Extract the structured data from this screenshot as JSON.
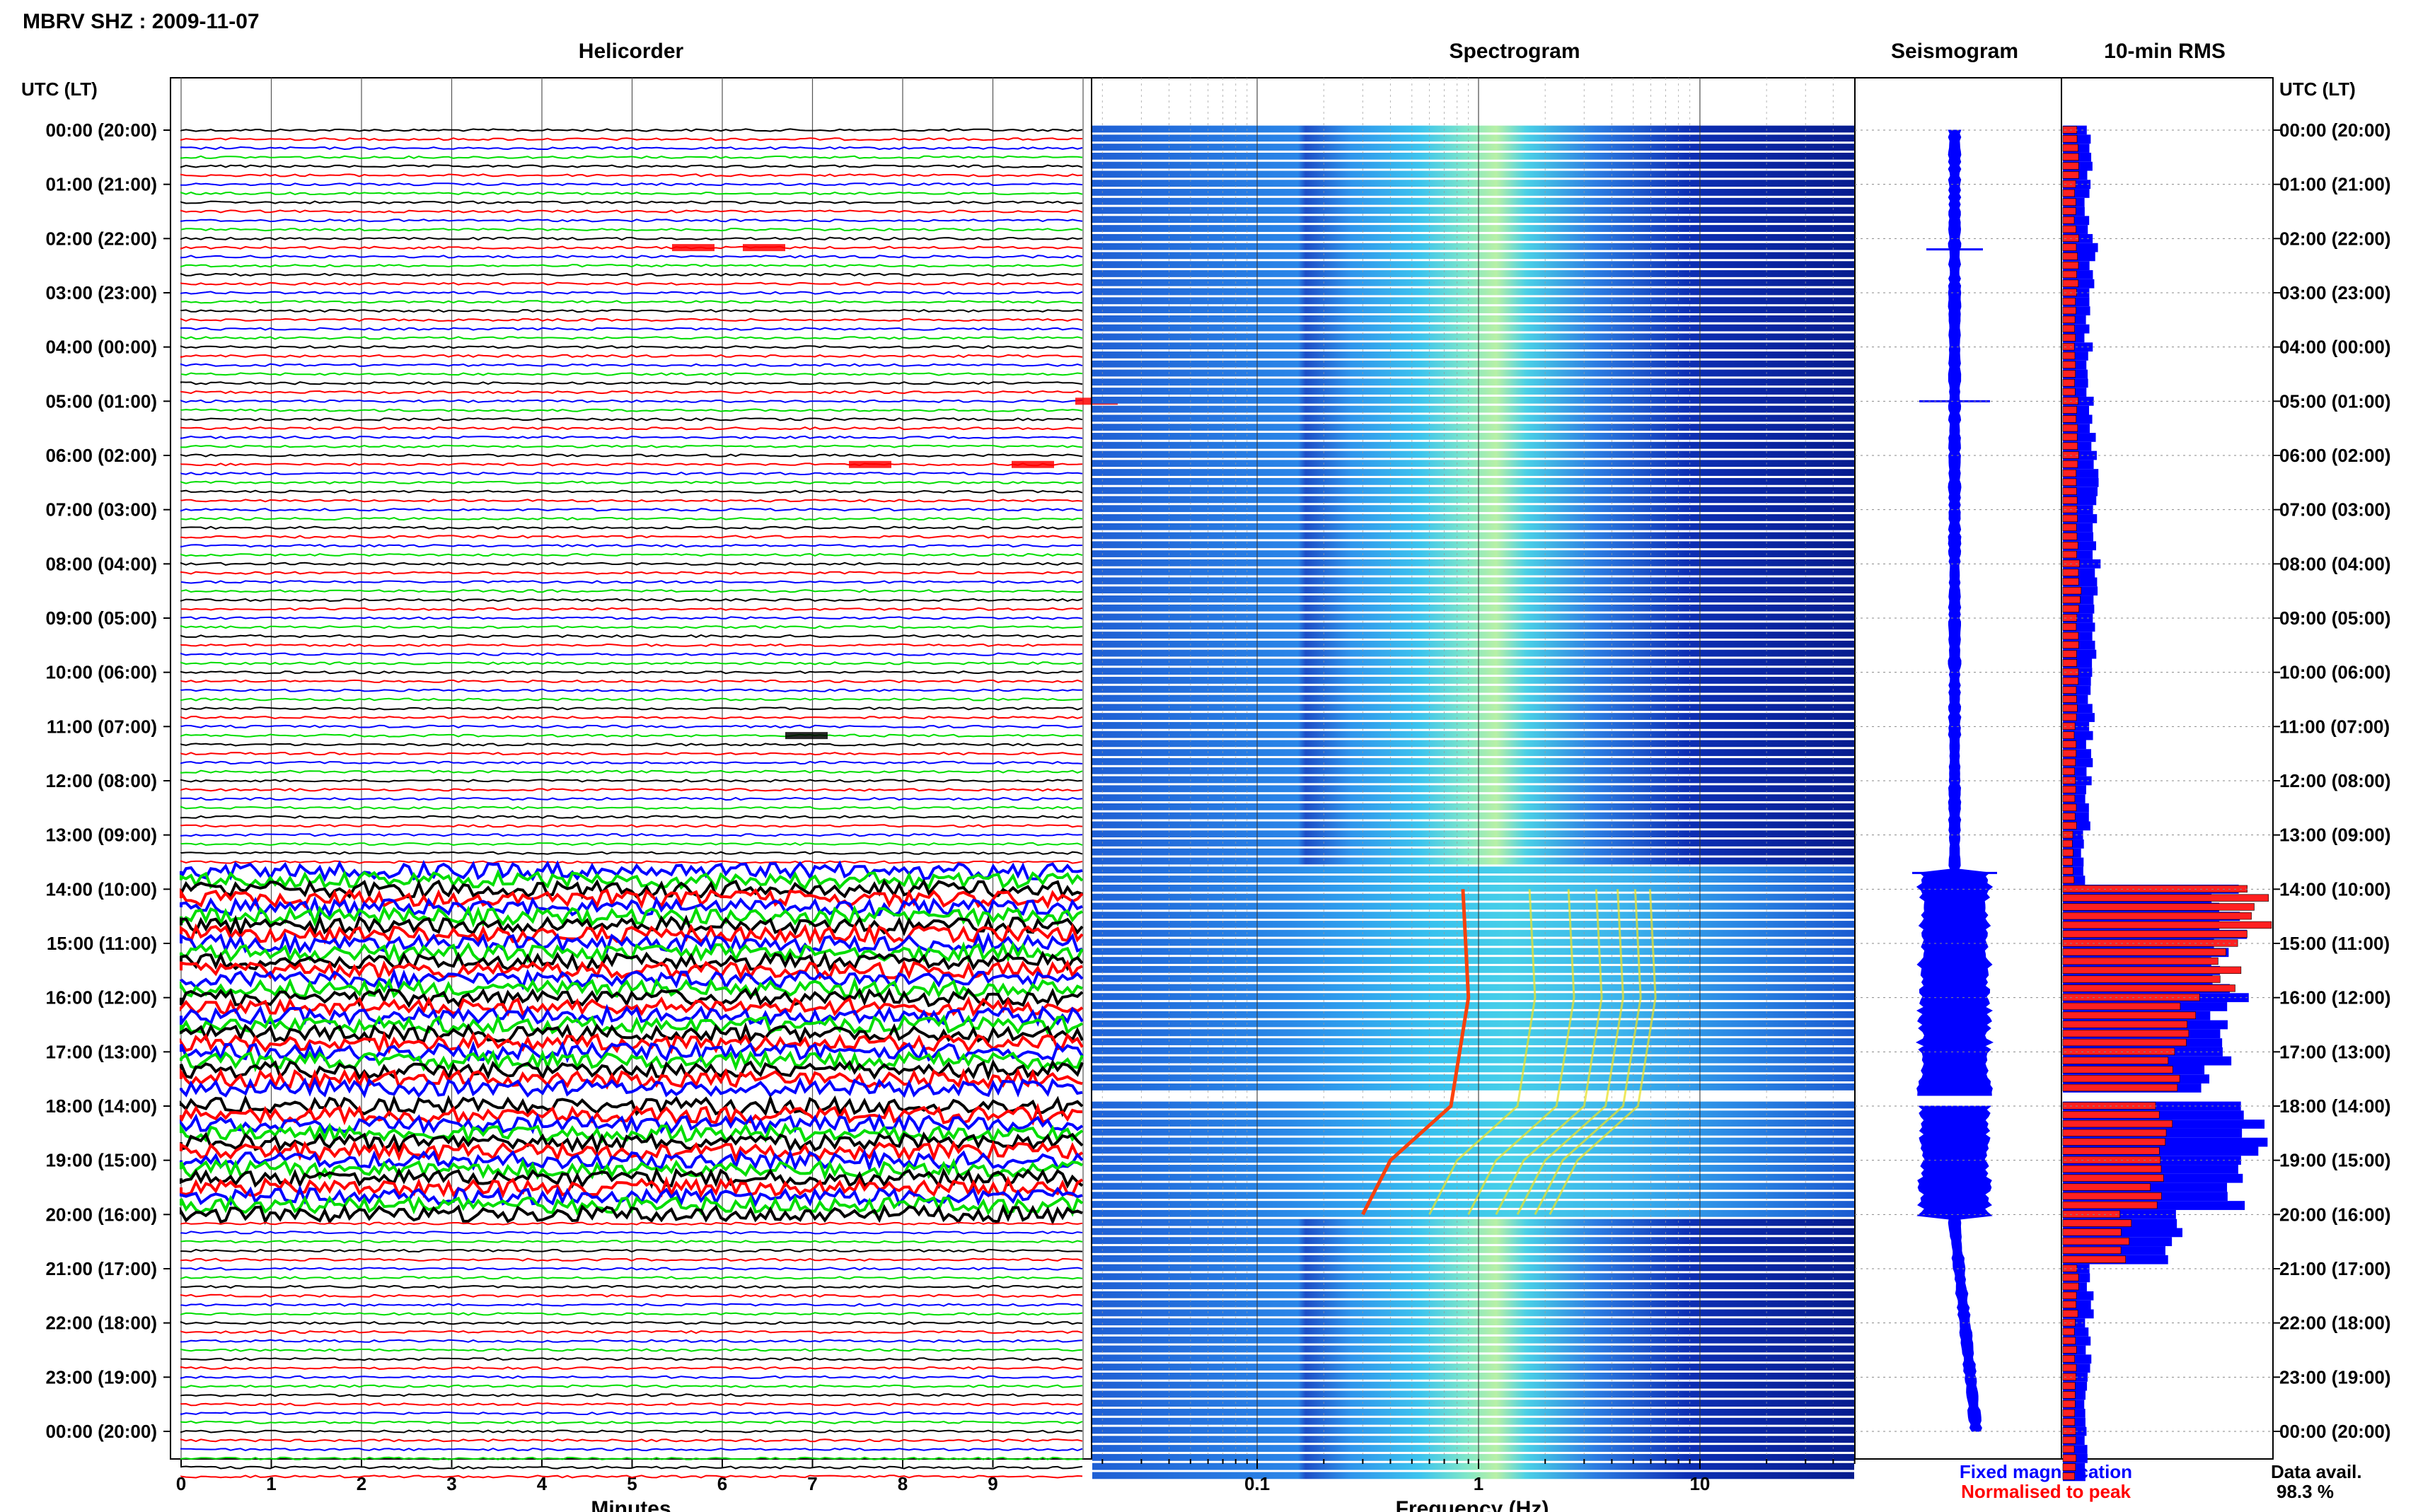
{
  "page_title": "MBRV SHZ : 2009-11-07",
  "chart_data": [
    {
      "type": "helicorder",
      "title": "Helicorder",
      "xlabel": "Minutes",
      "xlim": [
        0,
        10
      ],
      "xticks": [
        "0",
        "1",
        "2",
        "3",
        "4",
        "5",
        "6",
        "7",
        "8",
        "9"
      ],
      "row_minutes": 10,
      "trace_colors": [
        "#000000",
        "#ff0000",
        "#0000ff",
        "#00dd00"
      ],
      "high_activity_periods_utc": [
        [
          "13:40",
          "17:50"
        ],
        [
          "18:00",
          "20:00"
        ]
      ],
      "data_gap_utc": [
        "17:50",
        "18:00"
      ]
    },
    {
      "type": "heatmap",
      "title": "Spectrogram",
      "xlabel": "Frequency (Hz)",
      "x_scale": "log",
      "xlim": [
        0.02,
        50
      ],
      "xticks": [
        "0.1",
        "1",
        "10"
      ],
      "harmonic_tremor_fundamental_hz": [
        {
          "utc": "14:00",
          "hz": 0.85
        },
        {
          "utc": "16:00",
          "hz": 0.9
        },
        {
          "utc": "18:00",
          "hz": 0.75
        },
        {
          "utc": "19:00",
          "hz": 0.4
        },
        {
          "utc": "20:00",
          "hz": 0.3
        }
      ]
    },
    {
      "type": "line",
      "title": "Seismogram"
    },
    {
      "type": "bar",
      "title": "10-min RMS",
      "legend": [
        {
          "name": "Fixed magnification",
          "color": "#0000ff"
        },
        {
          "name": "Normalised to peak",
          "color": "#ff0000"
        }
      ],
      "hourly_level_fixed": [
        0.13,
        0.12,
        0.15,
        0.12,
        0.13,
        0.14,
        0.15,
        0.16,
        0.17,
        0.15,
        0.14,
        0.13,
        0.12,
        0.1,
        0.8,
        0.78,
        0.82,
        0.72,
        0.88,
        0.78,
        0.5,
        0.13,
        0.12,
        0.11,
        0.12
      ],
      "hourly_level_normalised": [
        0.07,
        0.06,
        0.07,
        0.06,
        0.06,
        0.07,
        0.07,
        0.07,
        0.08,
        0.07,
        0.07,
        0.06,
        0.06,
        0.05,
        0.95,
        0.8,
        0.62,
        0.55,
        0.48,
        0.46,
        0.3,
        0.07,
        0.06,
        0.06,
        0.06
      ]
    }
  ],
  "y_axis": {
    "title": "UTC (LT)",
    "labels": [
      "00:00 (20:00)",
      "01:00 (21:00)",
      "02:00 (22:00)",
      "03:00 (23:00)",
      "04:00 (00:00)",
      "05:00 (01:00)",
      "06:00 (02:00)",
      "07:00 (03:00)",
      "08:00 (04:00)",
      "09:00 (05:00)",
      "10:00 (06:00)",
      "11:00 (07:00)",
      "12:00 (08:00)",
      "13:00 (09:00)",
      "14:00 (10:00)",
      "15:00 (11:00)",
      "16:00 (12:00)",
      "17:00 (13:00)",
      "18:00 (14:00)",
      "19:00 (15:00)",
      "20:00 (16:00)",
      "21:00 (17:00)",
      "22:00 (18:00)",
      "23:00 (19:00)",
      "00:00 (20:00)"
    ]
  },
  "footer": {
    "data_avail_label": "Data avail.",
    "data_avail_value": "98.3 %"
  }
}
